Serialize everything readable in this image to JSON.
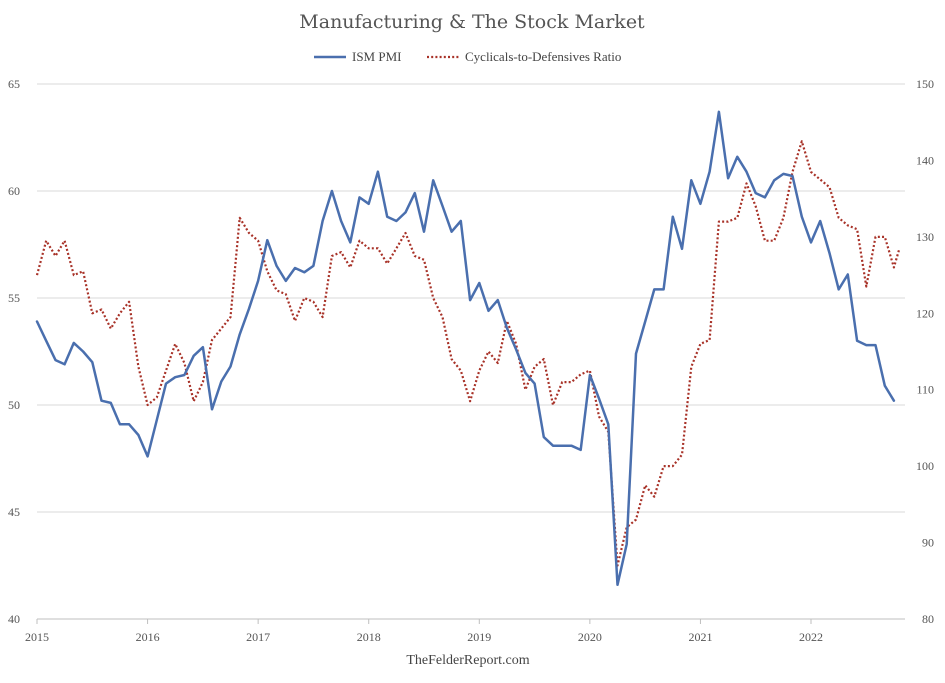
{
  "chart_data": {
    "type": "line",
    "title": "Manufacturing & The Stock Market",
    "source": "TheFelderReport.com",
    "legend_position": "top-center",
    "grid": true,
    "x_tick_labels": [
      "2015",
      "2016",
      "2017",
      "2018",
      "2019",
      "2020",
      "2021",
      "2022"
    ],
    "x_range": [
      2015.0,
      2022.85
    ],
    "y_left": {
      "range": [
        40,
        65
      ],
      "ticks": [
        40,
        45,
        50,
        55,
        60,
        65
      ]
    },
    "y_right": {
      "range": [
        80,
        150
      ],
      "ticks": [
        80,
        90,
        100,
        110,
        120,
        130,
        140,
        150
      ]
    },
    "series": [
      {
        "name": "ISM PMI",
        "axis": "left",
        "color": "#4a6fae",
        "style": "solid",
        "x": [
          2015.0,
          2015.083,
          2015.167,
          2015.25,
          2015.333,
          2015.417,
          2015.5,
          2015.583,
          2015.667,
          2015.75,
          2015.833,
          2015.917,
          2016.0,
          2016.083,
          2016.167,
          2016.25,
          2016.333,
          2016.417,
          2016.5,
          2016.583,
          2016.667,
          2016.75,
          2016.833,
          2016.917,
          2017.0,
          2017.083,
          2017.167,
          2017.25,
          2017.333,
          2017.417,
          2017.5,
          2017.583,
          2017.667,
          2017.75,
          2017.833,
          2017.917,
          2018.0,
          2018.083,
          2018.167,
          2018.25,
          2018.333,
          2018.417,
          2018.5,
          2018.583,
          2018.667,
          2018.75,
          2018.833,
          2018.917,
          2019.0,
          2019.083,
          2019.167,
          2019.25,
          2019.333,
          2019.417,
          2019.5,
          2019.583,
          2019.667,
          2019.75,
          2019.833,
          2019.917,
          2020.0,
          2020.083,
          2020.167,
          2020.25,
          2020.333,
          2020.417,
          2020.5,
          2020.583,
          2020.667,
          2020.75,
          2020.833,
          2020.917,
          2021.0,
          2021.083,
          2021.167,
          2021.25,
          2021.333,
          2021.417,
          2021.5,
          2021.583,
          2021.667,
          2021.75,
          2021.833,
          2021.917,
          2022.0,
          2022.083,
          2022.167,
          2022.25,
          2022.333,
          2022.417,
          2022.5,
          2022.583,
          2022.667,
          2022.75
        ],
        "values": [
          53.9,
          53.0,
          52.1,
          51.9,
          52.9,
          52.5,
          52.0,
          50.2,
          50.1,
          49.1,
          49.1,
          48.6,
          47.6,
          49.3,
          51.0,
          51.3,
          51.4,
          52.3,
          52.7,
          49.8,
          51.1,
          51.8,
          53.3,
          54.5,
          55.8,
          57.7,
          56.5,
          55.8,
          56.4,
          56.2,
          56.5,
          58.6,
          60.0,
          58.6,
          57.6,
          59.7,
          59.4,
          60.9,
          58.8,
          58.6,
          59.0,
          59.9,
          58.1,
          60.5,
          59.3,
          58.1,
          58.6,
          54.9,
          55.7,
          54.4,
          54.9,
          53.6,
          52.6,
          51.5,
          51.0,
          48.5,
          48.1,
          48.1,
          48.1,
          47.9,
          51.4,
          50.3,
          49.1,
          41.6,
          43.5,
          52.4,
          53.9,
          55.4,
          55.4,
          58.8,
          57.3,
          60.5,
          59.4,
          60.9,
          63.7,
          60.6,
          61.6,
          60.9,
          59.9,
          59.7,
          60.5,
          60.8,
          60.7,
          58.8,
          57.6,
          58.6,
          57.1,
          55.4,
          56.1,
          53.0,
          52.8,
          52.8,
          50.9,
          50.2
        ]
      },
      {
        "name": "Cyclicals-to-Defensives Ratio",
        "axis": "right",
        "color": "#a83228",
        "style": "dotted",
        "x": [
          2015.0,
          2015.083,
          2015.167,
          2015.25,
          2015.333,
          2015.417,
          2015.5,
          2015.583,
          2015.667,
          2015.75,
          2015.833,
          2015.917,
          2016.0,
          2016.083,
          2016.167,
          2016.25,
          2016.333,
          2016.417,
          2016.5,
          2016.583,
          2016.667,
          2016.75,
          2016.833,
          2016.917,
          2017.0,
          2017.083,
          2017.167,
          2017.25,
          2017.333,
          2017.417,
          2017.5,
          2017.583,
          2017.667,
          2017.75,
          2017.833,
          2017.917,
          2018.0,
          2018.083,
          2018.167,
          2018.25,
          2018.333,
          2018.417,
          2018.5,
          2018.583,
          2018.667,
          2018.75,
          2018.833,
          2018.917,
          2019.0,
          2019.083,
          2019.167,
          2019.25,
          2019.333,
          2019.417,
          2019.5,
          2019.583,
          2019.667,
          2019.75,
          2019.833,
          2019.917,
          2020.0,
          2020.083,
          2020.167,
          2020.25,
          2020.333,
          2020.417,
          2020.5,
          2020.583,
          2020.667,
          2020.75,
          2020.833,
          2020.917,
          2021.0,
          2021.083,
          2021.167,
          2021.25,
          2021.333,
          2021.417,
          2021.5,
          2021.583,
          2021.667,
          2021.75,
          2021.833,
          2021.917,
          2022.0,
          2022.083,
          2022.167,
          2022.25,
          2022.333,
          2022.417,
          2022.5,
          2022.583,
          2022.667,
          2022.75,
          2022.8
        ],
        "values": [
          125.0,
          129.5,
          127.5,
          129.5,
          125.0,
          125.5,
          120.0,
          120.5,
          118.0,
          120.0,
          121.5,
          113.0,
          108.0,
          109.0,
          112.5,
          116.0,
          113.5,
          108.5,
          111.0,
          116.5,
          118.0,
          119.5,
          132.5,
          130.5,
          129.5,
          125.5,
          123.0,
          122.5,
          119.0,
          122.0,
          121.5,
          119.5,
          127.5,
          128.0,
          126.0,
          129.5,
          128.5,
          128.5,
          126.5,
          128.5,
          130.5,
          127.5,
          127.0,
          122.0,
          119.5,
          114.0,
          112.5,
          108.5,
          112.5,
          115.0,
          113.5,
          119.0,
          116.0,
          110.0,
          113.0,
          114.0,
          108.0,
          111.0,
          111.0,
          112.0,
          112.5,
          106.5,
          104.5,
          87.0,
          92.0,
          93.0,
          97.5,
          96.0,
          100.0,
          100.0,
          101.5,
          113.0,
          116.0,
          116.5,
          132.0,
          132.0,
          132.5,
          137.0,
          134.0,
          129.5,
          129.5,
          132.5,
          138.5,
          142.5,
          138.5,
          137.5,
          136.5,
          132.5,
          131.5,
          131.0,
          123.5,
          130.0,
          130.0,
          126.0,
          128.5
        ]
      }
    ]
  }
}
